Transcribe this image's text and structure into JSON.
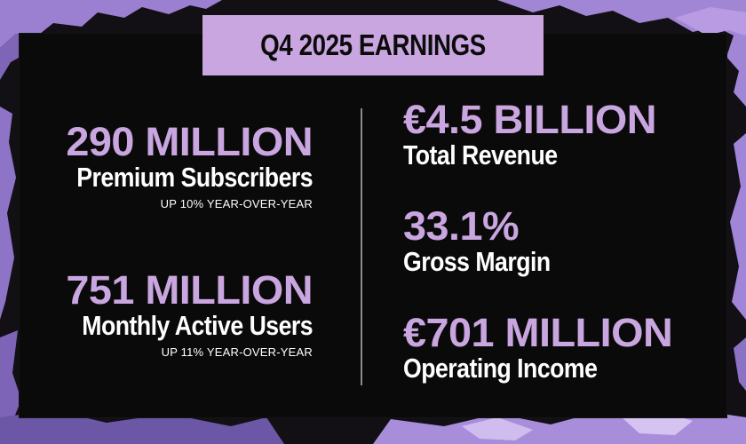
{
  "title": "Q4 2025 EARNINGS",
  "colors": {
    "accent": "#c9a6e0",
    "panel": "#0a0a0a",
    "text": "#ffffff"
  },
  "left_stats": [
    {
      "value": "290 MILLION",
      "label": "Premium Subscribers",
      "change": "UP 10% YEAR-OVER-YEAR"
    },
    {
      "value": "751 MILLION",
      "label": "Monthly Active Users",
      "change": "UP 11% YEAR-OVER-YEAR"
    }
  ],
  "right_stats": [
    {
      "value": "€4.5 BILLION",
      "label": "Total Revenue"
    },
    {
      "value": "33.1%",
      "label": "Gross Margin"
    },
    {
      "value": "€701 MILLION",
      "label": "Operating Income"
    }
  ]
}
